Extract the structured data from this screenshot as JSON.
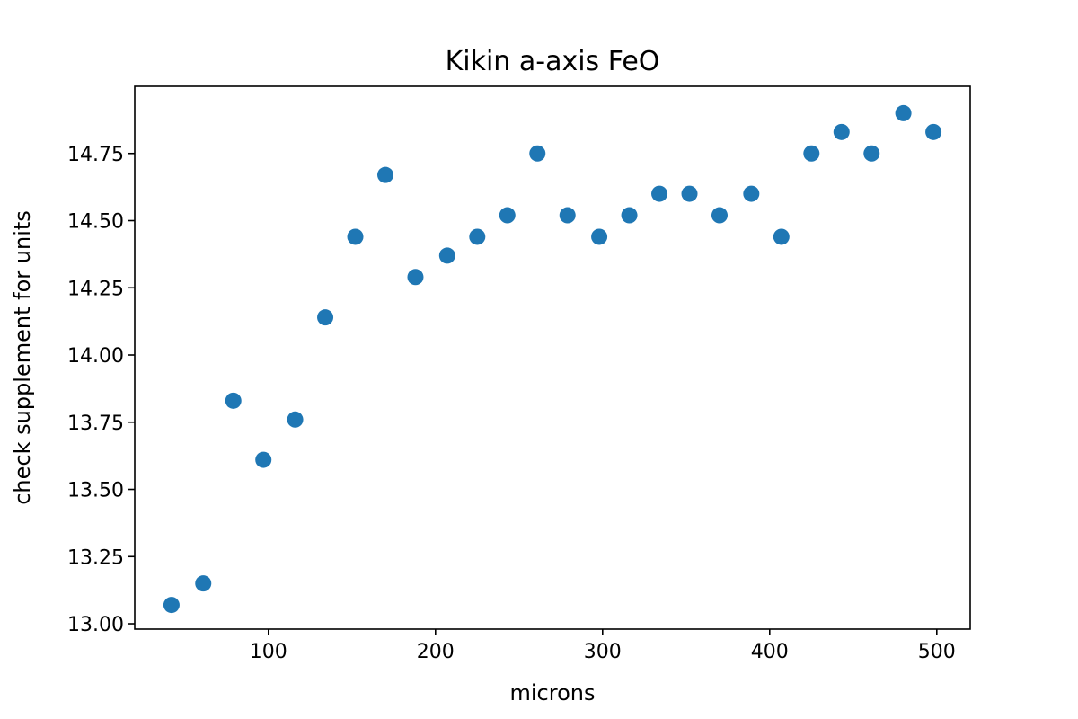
{
  "chart_data": {
    "type": "scatter",
    "title": "Kikin a-axis FeO",
    "xlabel": "microns",
    "ylabel": "check supplement for units",
    "xlim": [
      20,
      520
    ],
    "ylim": [
      12.98,
      15.0
    ],
    "xticks": [
      100,
      200,
      300,
      400,
      500
    ],
    "yticks": [
      13.0,
      13.25,
      13.5,
      13.75,
      14.0,
      14.25,
      14.5,
      14.75
    ],
    "ytick_labels": [
      "13.00",
      "13.25",
      "13.50",
      "13.75",
      "14.00",
      "14.25",
      "14.50",
      "14.75"
    ],
    "grid": false,
    "marker_color": "#1f77b4",
    "series": [
      {
        "x": [
          42,
          61,
          79,
          97,
          116,
          134,
          152,
          170,
          188,
          207,
          225,
          243,
          261,
          279,
          298,
          316,
          334,
          352,
          370,
          389,
          407,
          425,
          443,
          461,
          480,
          498
        ],
        "y": [
          13.07,
          13.15,
          13.83,
          13.61,
          13.76,
          14.14,
          14.44,
          14.67,
          14.29,
          14.37,
          14.44,
          14.52,
          14.75,
          14.52,
          14.44,
          14.52,
          14.6,
          14.6,
          14.52,
          14.6,
          14.44,
          14.75,
          14.83,
          14.75,
          14.9,
          14.83
        ]
      }
    ]
  }
}
